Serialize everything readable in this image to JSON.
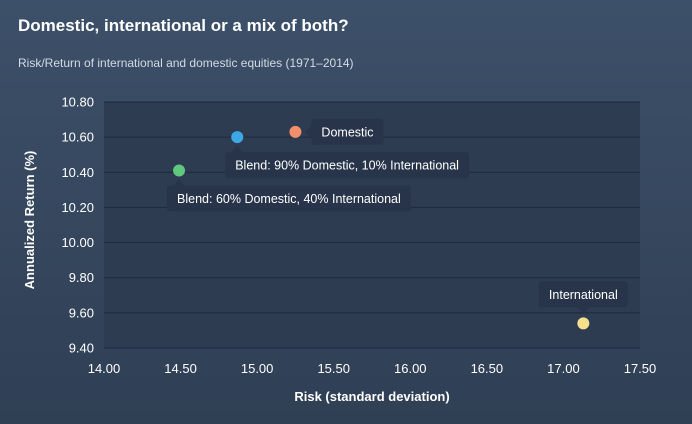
{
  "header": {
    "title": "Domestic, international or a mix of both?",
    "subtitle": "Risk/Return of international and domestic equities (1971–2014)"
  },
  "colors": {
    "background": "#36475e",
    "plot_area": "#2e3c52",
    "grid": "#1f2a3b",
    "annotation_bg": "#27344a"
  },
  "chart_data": {
    "type": "scatter",
    "xlabel": "Risk (standard deviation)",
    "ylabel": "Annualized Return (%)",
    "xlim": [
      14.0,
      17.5
    ],
    "ylim": [
      9.4,
      10.8
    ],
    "xticks": [
      "14.00",
      "14.50",
      "15.00",
      "15.50",
      "16.00",
      "16.50",
      "17.00",
      "17.50"
    ],
    "yticks": [
      "10.80",
      "10.60",
      "10.40",
      "10.20",
      "10.00",
      "9.80",
      "9.60",
      "9.40"
    ],
    "grid": true,
    "points": [
      {
        "label": "Domestic",
        "x": 15.25,
        "y": 10.63,
        "color": "#f28f6b",
        "label_side": "right"
      },
      {
        "label": "Blend: 90% Domestic, 10% International",
        "x": 14.87,
        "y": 10.6,
        "color": "#3ca8e6",
        "label_side": "below"
      },
      {
        "label": "Blend: 60% Domestic, 40% International",
        "x": 14.49,
        "y": 10.41,
        "color": "#5fc77e",
        "label_side": "below"
      },
      {
        "label": "International",
        "x": 17.13,
        "y": 9.54,
        "color": "#f7e08c",
        "label_side": "above"
      }
    ]
  }
}
